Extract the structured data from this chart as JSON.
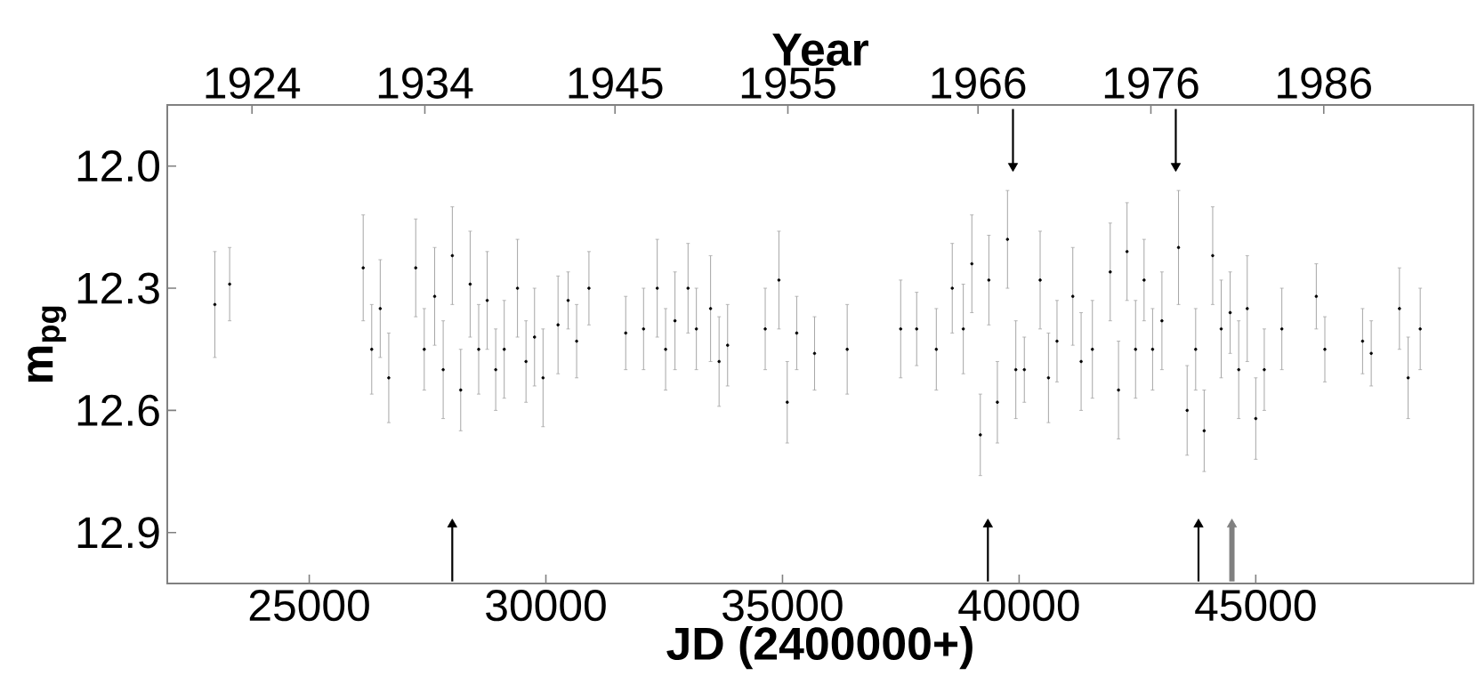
{
  "chart_data": {
    "type": "scatter",
    "xlabel": "JD (2400000+)",
    "ylabel": "m$_{pg}$",
    "x2label": "Year",
    "xlim": [
      22000,
      49600
    ],
    "xticks": [
      25000,
      30000,
      35000,
      40000,
      45000
    ],
    "x2lim": [
      1919.1,
      1994.66
    ],
    "x2ticks": [
      1924,
      1934,
      1945,
      1955,
      1966,
      1976,
      1986
    ],
    "ylim": [
      13.025,
      11.85
    ],
    "yticks": [
      {
        "value": 12.0,
        "label": "12.0"
      },
      {
        "value": 12.3,
        "label": "12.3"
      },
      {
        "value": 12.6,
        "label": "12.6"
      },
      {
        "value": 12.9,
        "label": "12.9"
      }
    ],
    "series": [
      {
        "color": "#000000",
        "marker": "circle",
        "x": [
          23005,
          23318,
          26140,
          26320,
          26500,
          26680,
          27250,
          27430,
          27650,
          27830,
          28023,
          28200,
          28400,
          28580,
          28760,
          28940,
          29120,
          29400,
          29580,
          29760,
          29940,
          30257,
          30470,
          30650,
          30910,
          31687,
          32064,
          32353,
          32530,
          32728,
          33004,
          33180,
          33480,
          33660,
          33840,
          34635,
          34924,
          35100,
          35300,
          35677,
          36367,
          37497,
          37835,
          38250,
          38587,
          38820,
          39001,
          39180,
          39360,
          39540,
          39754,
          39930,
          40110,
          40444,
          40620,
          40800,
          41134,
          41310,
          41548,
          41925,
          42100,
          42280,
          42460,
          42640,
          42820,
          43017,
          43368,
          43550,
          43730,
          43910,
          44090,
          44270,
          44459,
          44640,
          44820,
          45000,
          45180,
          45551,
          46279,
          46460,
          47257,
          47440,
          48036,
          48220,
          48475
        ],
        "values": [
          12.34,
          12.29,
          12.25,
          12.45,
          12.35,
          12.52,
          12.25,
          12.45,
          12.32,
          12.5,
          12.22,
          12.55,
          12.29,
          12.45,
          12.33,
          12.5,
          12.45,
          12.3,
          12.48,
          12.42,
          12.52,
          12.39,
          12.33,
          12.43,
          12.3,
          12.41,
          12.4,
          12.3,
          12.45,
          12.38,
          12.3,
          12.4,
          12.35,
          12.48,
          12.44,
          12.4,
          12.28,
          12.58,
          12.41,
          12.46,
          12.45,
          12.4,
          12.4,
          12.45,
          12.3,
          12.4,
          12.24,
          12.66,
          12.28,
          12.58,
          12.18,
          12.5,
          12.5,
          12.28,
          12.52,
          12.43,
          12.32,
          12.48,
          12.45,
          12.26,
          12.55,
          12.21,
          12.45,
          12.28,
          12.45,
          12.38,
          12.2,
          12.6,
          12.45,
          12.65,
          12.22,
          12.4,
          12.36,
          12.5,
          12.35,
          12.62,
          12.5,
          12.4,
          12.32,
          12.45,
          12.43,
          12.46,
          12.35,
          12.52,
          12.4
        ],
        "errors": [
          0.13,
          0.09,
          0.13,
          0.11,
          0.12,
          0.11,
          0.12,
          0.1,
          0.12,
          0.12,
          0.12,
          0.1,
          0.13,
          0.11,
          0.12,
          0.1,
          0.12,
          0.12,
          0.1,
          0.12,
          0.12,
          0.12,
          0.07,
          0.09,
          0.09,
          0.09,
          0.1,
          0.12,
          0.1,
          0.12,
          0.11,
          0.1,
          0.13,
          0.11,
          0.1,
          0.1,
          0.12,
          0.1,
          0.09,
          0.09,
          0.11,
          0.12,
          0.09,
          0.1,
          0.11,
          0.11,
          0.12,
          0.1,
          0.11,
          0.1,
          0.12,
          0.12,
          0.08,
          0.12,
          0.11,
          0.1,
          0.12,
          0.12,
          0.12,
          0.12,
          0.12,
          0.12,
          0.12,
          0.1,
          0.1,
          0.12,
          0.14,
          0.11,
          0.1,
          0.1,
          0.12,
          0.12,
          0.1,
          0.12,
          0.13,
          0.1,
          0.1,
          0.1,
          0.08,
          0.08,
          0.08,
          0.08,
          0.1,
          0.1,
          0.1
        ]
      },
      {
        "type": "line",
        "color": "#000000",
        "marker": "triangle",
        "x": [
          28022,
          28022
        ],
        "values": [
          13.02,
          12.88
        ]
      },
      {
        "type": "line",
        "color": "#000000",
        "marker": "triangle",
        "x": [
          39340,
          39340
        ],
        "values": [
          13.02,
          12.88
        ]
      },
      {
        "type": "line",
        "color": "#000000",
        "marker": "triangle",
        "x": [
          43790,
          43790
        ],
        "values": [
          13.02,
          12.88
        ]
      },
      {
        "type": "line",
        "color": "#808080",
        "marker": "triangle",
        "x": [
          44496,
          44496
        ],
        "values": [
          13.02,
          12.88
        ]
      },
      {
        "type": "line",
        "color": "#000000",
        "marker": "triangle",
        "x": [
          39870,
          39870
        ],
        "values": [
          11.86,
          12.0
        ]
      },
      {
        "type": "line",
        "color": "#000000",
        "marker": "triangle",
        "x": [
          43310,
          43310
        ],
        "values": [
          11.86,
          12.0
        ]
      }
    ]
  }
}
